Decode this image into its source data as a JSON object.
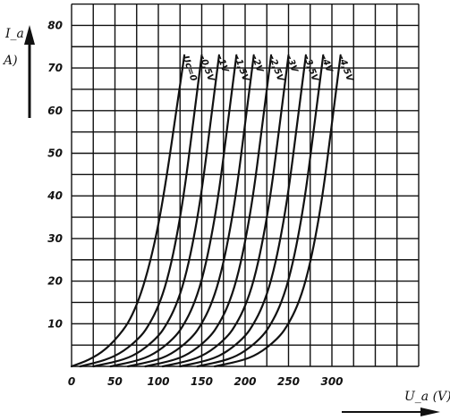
{
  "chart_data": {
    "type": "line",
    "xlabel": "U_a (V)",
    "ylabel": "I_a",
    "ylabel_unit": "A)",
    "xlim": [
      0,
      400
    ],
    "ylim": [
      0,
      85
    ],
    "x_ticks": [
      0,
      50,
      100,
      150,
      200,
      250,
      300
    ],
    "x_tick_labels": [
      "0",
      "50",
      "100",
      "150",
      "200",
      "250",
      "300"
    ],
    "y_ticks": [
      10,
      20,
      30,
      40,
      50,
      60,
      70,
      80
    ],
    "y_tick_labels": [
      "10",
      "20",
      "30",
      "40",
      "50",
      "60",
      "70",
      "80"
    ],
    "grid": true,
    "series": [
      {
        "name": "Uc=0",
        "x": [
          0,
          20,
          40,
          60,
          70,
          80,
          90,
          100,
          110,
          120,
          130
        ],
        "y": [
          0,
          1.5,
          4,
          8.5,
          12,
          17,
          24,
          33,
          45,
          59,
          73
        ]
      },
      {
        "name": "-0,5V",
        "x": [
          10,
          40,
          60,
          80,
          90,
          100,
          110,
          120,
          130,
          140,
          150
        ],
        "y": [
          0,
          1.5,
          3.5,
          7,
          10,
          14,
          20,
          29,
          41,
          57,
          73
        ]
      },
      {
        "name": "-1V",
        "x": [
          25,
          60,
          80,
          100,
          110,
          120,
          130,
          140,
          150,
          160,
          170
        ],
        "y": [
          0,
          1.5,
          3.5,
          7,
          10,
          14,
          20,
          29,
          41,
          57,
          73
        ]
      },
      {
        "name": "-1,5V",
        "x": [
          45,
          80,
          100,
          120,
          130,
          140,
          150,
          160,
          170,
          180,
          190
        ],
        "y": [
          0,
          1.5,
          3.5,
          7,
          10,
          14,
          20,
          29,
          41,
          57,
          73
        ]
      },
      {
        "name": "-2V",
        "x": [
          65,
          100,
          120,
          140,
          150,
          160,
          170,
          180,
          190,
          200,
          210
        ],
        "y": [
          0,
          1.5,
          3.5,
          7,
          10,
          14,
          20,
          29,
          41,
          57,
          73
        ]
      },
      {
        "name": "-2,5V",
        "x": [
          85,
          120,
          140,
          160,
          170,
          180,
          190,
          200,
          210,
          220,
          230
        ],
        "y": [
          0,
          1.5,
          3.5,
          7,
          10,
          14,
          20,
          29,
          41,
          57,
          73
        ]
      },
      {
        "name": "-3V",
        "x": [
          105,
          140,
          160,
          180,
          190,
          200,
          210,
          220,
          230,
          240,
          250
        ],
        "y": [
          0,
          1.5,
          3.5,
          7,
          10,
          14,
          20,
          29,
          41,
          57,
          73
        ]
      },
      {
        "name": "-3,5V",
        "x": [
          125,
          160,
          180,
          200,
          210,
          220,
          230,
          240,
          250,
          260,
          270
        ],
        "y": [
          0,
          1.5,
          3.5,
          7,
          10,
          14,
          20,
          29,
          41,
          57,
          73
        ]
      },
      {
        "name": "-4V",
        "x": [
          145,
          180,
          200,
          220,
          230,
          240,
          250,
          260,
          270,
          280,
          290
        ],
        "y": [
          0,
          1.5,
          3.5,
          7,
          10,
          14,
          20,
          29,
          41,
          57,
          73
        ]
      },
      {
        "name": "-4,5V",
        "x": [
          165,
          200,
          220,
          240,
          250,
          260,
          270,
          280,
          290,
          300,
          310
        ],
        "y": [
          0,
          1.5,
          3.5,
          7,
          10,
          14,
          20,
          29,
          41,
          57,
          73
        ]
      }
    ]
  }
}
